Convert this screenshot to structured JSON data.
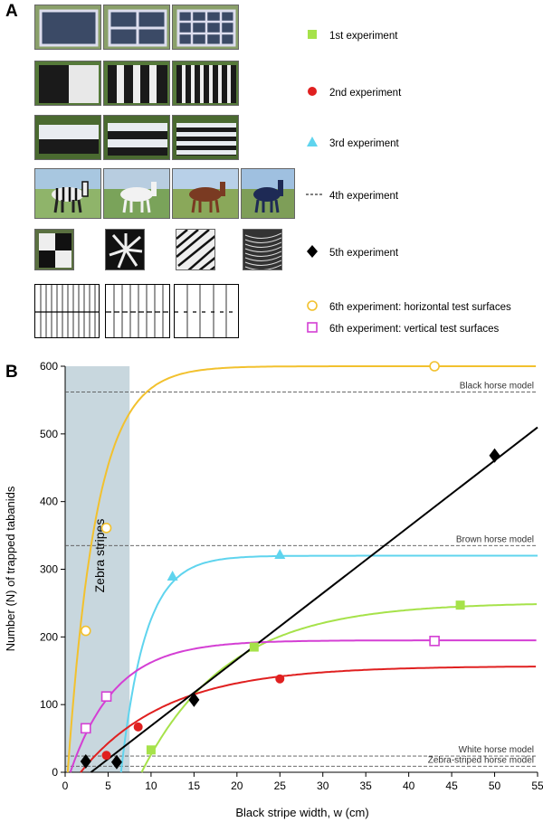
{
  "panelA": {
    "letter": "A",
    "legend": [
      {
        "label": "1st experiment",
        "marker": "square-filled",
        "color": "#a6e24a"
      },
      {
        "label": "2nd experiment",
        "marker": "circle-filled",
        "color": "#e02020"
      },
      {
        "label": "3rd experiment",
        "marker": "triangle-filled",
        "color": "#5fd4ee"
      },
      {
        "label": "4th experiment",
        "marker": "dashed-line",
        "color": "#000000"
      },
      {
        "label": "5th experiment",
        "marker": "diamond-filled",
        "color": "#000000"
      },
      {
        "label": "6th experiment: horizontal test surfaces",
        "marker": "circle-open",
        "color": "#f2c12e"
      },
      {
        "label": "6th experiment: vertical test surfaces",
        "marker": "square-open",
        "color": "#d43fd4"
      }
    ]
  },
  "chart_data": {
    "letter": "B",
    "type": "line",
    "xlabel": "Black stripe width, w (cm)",
    "ylabel": "Number (N) of trapped tabanids",
    "xlim": [
      0,
      55
    ],
    "ylim": [
      0,
      600
    ],
    "xticks": [
      0,
      5,
      10,
      15,
      20,
      25,
      30,
      35,
      40,
      45,
      50,
      55
    ],
    "yticks": [
      0,
      100,
      200,
      300,
      400,
      500,
      600
    ],
    "shaded_region": {
      "x": [
        0,
        7.5
      ],
      "label": "Zebra stripes",
      "color": "#c8d7de"
    },
    "reference_lines": [
      {
        "label": "Black horse model",
        "y": 562
      },
      {
        "label": "Brown horse model",
        "y": 335
      },
      {
        "label": "White horse model",
        "y": 24
      },
      {
        "label": "Zebra-striped horse model",
        "y": 9
      }
    ],
    "series": [
      {
        "name": "6th experiment: horizontal test surfaces",
        "color": "#f2c12e",
        "marker": "circle-open",
        "points": [
          [
            2.4,
            209
          ],
          [
            4.8,
            361
          ],
          [
            43,
            600
          ]
        ],
        "curve": {
          "kind": "exp",
          "x0": 0.3,
          "A": 600,
          "k": 0.3
        }
      },
      {
        "name": "3rd experiment",
        "color": "#5fd4ee",
        "marker": "triangle-filled",
        "points": [
          [
            12.5,
            290
          ],
          [
            25,
            322
          ]
        ],
        "curve": {
          "kind": "exp",
          "x0": 6.5,
          "A": 320,
          "k": 0.35
        }
      },
      {
        "name": "1st experiment",
        "color": "#a6e24a",
        "marker": "square-filled",
        "points": [
          [
            10,
            33
          ],
          [
            22,
            185
          ],
          [
            46,
            247
          ]
        ],
        "curve": {
          "kind": "exp",
          "x0": 8.9,
          "A": 251,
          "k": 0.1
        }
      },
      {
        "name": "6th experiment: vertical test surfaces",
        "color": "#d43fd4",
        "marker": "square-open",
        "points": [
          [
            2.4,
            65
          ],
          [
            4.8,
            112
          ],
          [
            43,
            194
          ]
        ],
        "curve": {
          "kind": "exp",
          "x0": 0.6,
          "A": 195,
          "k": 0.19
        }
      },
      {
        "name": "2nd experiment",
        "color": "#e02020",
        "marker": "circle-filled",
        "points": [
          [
            4.8,
            25
          ],
          [
            8.5,
            67
          ],
          [
            25,
            138
          ]
        ],
        "curve": {
          "kind": "exp",
          "x0": 1.8,
          "A": 157,
          "k": 0.1
        }
      },
      {
        "name": "5th experiment",
        "color": "#000000",
        "marker": "diamond-filled",
        "points": [
          [
            2.4,
            16
          ],
          [
            6,
            15
          ],
          [
            15,
            107
          ],
          [
            50,
            468
          ]
        ],
        "curve": {
          "kind": "line",
          "x0": 3,
          "slope": 9.8
        }
      }
    ]
  }
}
